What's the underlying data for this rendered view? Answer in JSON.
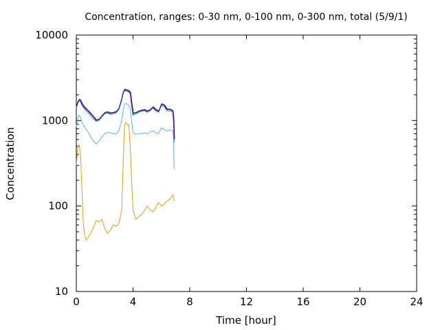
{
  "chart_data": {
    "type": "line",
    "title": "Concentration, ranges: 0-30 nm, 0-100 nm, 0-300 nm, total (5/9/1)",
    "xlabel": "Time [hour]",
    "ylabel": "Concentration",
    "xlim": [
      0,
      24
    ],
    "ylim": [
      10,
      10000
    ],
    "yscale": "log",
    "grid": false,
    "x_ticks": [
      "0",
      "4",
      "8",
      "12",
      "16",
      "20",
      "24"
    ],
    "y_ticks": [
      "10",
      "100",
      "1000",
      "10000"
    ],
    "colors": {
      "0-30 nm": "#e69f00",
      "0-100 nm": "#56b4e9",
      "0-300 nm": "#009e73",
      "total": "#9400d3",
      "total_dark": "#1a1a6e"
    },
    "series": [
      {
        "key": "0-30 nm",
        "x": [
          0.0,
          0.1,
          0.2,
          0.3,
          0.4,
          0.5,
          0.6,
          0.7,
          0.8,
          1.0,
          1.2,
          1.4,
          1.6,
          1.8,
          2.0,
          2.2,
          2.4,
          2.6,
          2.8,
          3.0,
          3.2,
          3.3,
          3.4,
          3.5,
          3.6,
          3.7,
          3.8,
          3.9,
          4.0,
          4.2,
          4.4,
          4.6,
          4.8,
          5.0,
          5.2,
          5.4,
          5.6,
          5.8,
          6.0,
          6.2,
          6.4,
          6.6,
          6.8,
          6.9
        ],
        "values": [
          300,
          480,
          520,
          400,
          150,
          60,
          45,
          40,
          42,
          48,
          55,
          68,
          65,
          70,
          55,
          48,
          52,
          60,
          58,
          62,
          90,
          300,
          900,
          950,
          880,
          900,
          500,
          200,
          90,
          70,
          75,
          80,
          88,
          100,
          90,
          85,
          95,
          110,
          100,
          105,
          115,
          120,
          135,
          115
        ]
      },
      {
        "key": "0-100 nm",
        "x": [
          0.0,
          0.1,
          0.2,
          0.3,
          0.4,
          0.6,
          0.8,
          1.0,
          1.2,
          1.4,
          1.6,
          1.8,
          2.0,
          2.2,
          2.4,
          2.6,
          2.8,
          3.0,
          3.2,
          3.3,
          3.4,
          3.5,
          3.6,
          3.7,
          3.8,
          3.9,
          4.0,
          4.2,
          4.4,
          4.6,
          4.8,
          5.0,
          5.2,
          5.4,
          5.6,
          5.8,
          6.0,
          6.2,
          6.4,
          6.6,
          6.8,
          6.85,
          6.9
        ],
        "values": [
          850,
          1050,
          1150,
          1100,
          950,
          820,
          750,
          650,
          580,
          530,
          570,
          640,
          700,
          730,
          720,
          700,
          700,
          760,
          1000,
          1300,
          1550,
          1600,
          1550,
          1500,
          1400,
          1000,
          720,
          690,
          700,
          700,
          720,
          700,
          730,
          760,
          720,
          700,
          820,
          780,
          750,
          780,
          760,
          650,
          270
        ]
      },
      {
        "key": "0-300 nm",
        "x": [
          0.0,
          0.1,
          0.2,
          0.3,
          0.4,
          0.6,
          0.8,
          1.0,
          1.2,
          1.4,
          1.6,
          1.8,
          2.0,
          2.2,
          2.4,
          2.6,
          2.8,
          3.0,
          3.2,
          3.3,
          3.4,
          3.5,
          3.6,
          3.7,
          3.8,
          3.9,
          4.0,
          4.2,
          4.4,
          4.6,
          4.8,
          5.0,
          5.2,
          5.4,
          5.6,
          5.8,
          6.0,
          6.2,
          6.4,
          6.6,
          6.8,
          6.85,
          6.9
        ],
        "values": [
          1400,
          1600,
          1700,
          1650,
          1500,
          1350,
          1250,
          1150,
          1050,
          980,
          1000,
          1100,
          1200,
          1220,
          1180,
          1200,
          1230,
          1350,
          1750,
          2100,
          2250,
          2200,
          2200,
          2150,
          2050,
          1500,
          1150,
          1200,
          1250,
          1280,
          1300,
          1250,
          1300,
          1400,
          1300,
          1250,
          1500,
          1450,
          1300,
          1300,
          1250,
          1000,
          560
        ]
      },
      {
        "key": "total",
        "x": [
          0.0,
          0.1,
          0.2,
          0.3,
          0.4,
          0.6,
          0.8,
          1.0,
          1.2,
          1.4,
          1.6,
          1.8,
          2.0,
          2.2,
          2.4,
          2.6,
          2.8,
          3.0,
          3.2,
          3.3,
          3.4,
          3.5,
          3.6,
          3.7,
          3.8,
          3.9,
          4.0,
          4.2,
          4.4,
          4.6,
          4.8,
          5.0,
          5.2,
          5.4,
          5.6,
          5.8,
          6.0,
          6.2,
          6.4,
          6.6,
          6.8,
          6.85,
          6.9
        ],
        "values": [
          1450,
          1650,
          1750,
          1700,
          1550,
          1400,
          1300,
          1200,
          1100,
          1000,
          1030,
          1130,
          1230,
          1250,
          1210,
          1230,
          1260,
          1380,
          1800,
          2150,
          2300,
          2250,
          2250,
          2200,
          2100,
          1550,
          1200,
          1230,
          1280,
          1310,
          1330,
          1280,
          1330,
          1430,
          1330,
          1280,
          1550,
          1500,
          1340,
          1340,
          1290,
          1050,
          600
        ]
      }
    ]
  }
}
